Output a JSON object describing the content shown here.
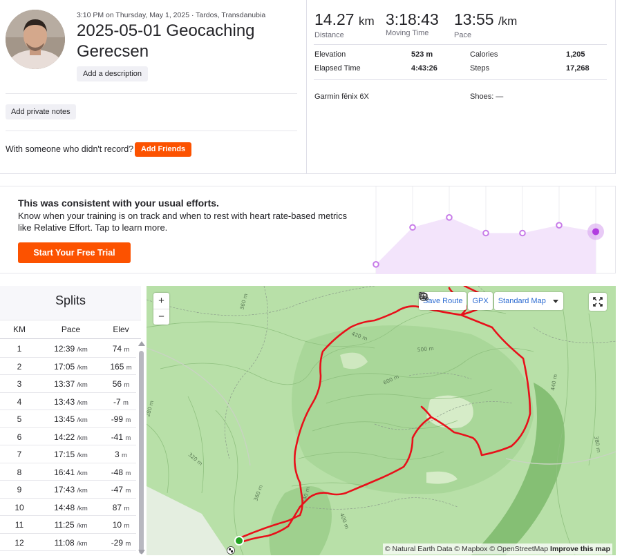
{
  "activity": {
    "meta": "3:10 PM on Thursday, May 1, 2025 · Tardos, Transdanubia",
    "title": "2025-05-01 Geocaching Gerecsen",
    "add_description": "Add a description",
    "add_private_notes": "Add private notes",
    "with_someone": "With someone who didn't record?",
    "add_friends": "Add Friends"
  },
  "stats": {
    "distance": {
      "value": "14.27",
      "unit": "km",
      "label": "Distance"
    },
    "moving_time": {
      "value": "3:18:43",
      "label": "Moving Time"
    },
    "pace": {
      "value": "13:55",
      "unit": "/km",
      "label": "Pace"
    },
    "rows": [
      {
        "label": "Elevation",
        "value": "523 m"
      },
      {
        "label": "Calories",
        "value": "1,205"
      },
      {
        "label": "Elapsed Time",
        "value": "4:43:26"
      },
      {
        "label": "Steps",
        "value": "17,268"
      }
    ],
    "device": "Garmin fēnix 6X",
    "shoes": "Shoes: —"
  },
  "effort": {
    "title": "This was consistent with your usual efforts.",
    "body": "Know when your training is on track and when to rest with heart rate-based metrics like Relative Effort. Tap to learn more.",
    "cta": "Start Your Free Trial",
    "trend_levels": [
      0.06,
      0.58,
      0.72,
      0.5,
      0.5,
      0.61,
      0.52
    ]
  },
  "splits": {
    "title": "Splits",
    "headers": {
      "km": "KM",
      "pace": "Pace",
      "elev": "Elev"
    },
    "pace_unit": "/km",
    "elev_unit": "m",
    "rows": [
      {
        "km": "1",
        "pace": "12:39",
        "elev": "74"
      },
      {
        "km": "2",
        "pace": "17:05",
        "elev": "165"
      },
      {
        "km": "3",
        "pace": "13:37",
        "elev": "56"
      },
      {
        "km": "4",
        "pace": "13:43",
        "elev": "-7"
      },
      {
        "km": "5",
        "pace": "13:45",
        "elev": "-99"
      },
      {
        "km": "6",
        "pace": "14:22",
        "elev": "-41"
      },
      {
        "km": "7",
        "pace": "17:15",
        "elev": "3"
      },
      {
        "km": "8",
        "pace": "16:41",
        "elev": "-48"
      },
      {
        "km": "9",
        "pace": "17:43",
        "elev": "-47"
      },
      {
        "km": "10",
        "pace": "14:48",
        "elev": "87"
      },
      {
        "km": "11",
        "pace": "11:25",
        "elev": "10"
      },
      {
        "km": "12",
        "pace": "11:08",
        "elev": "-29"
      }
    ]
  },
  "map": {
    "save_route": "Save Route",
    "gpx": "GPX",
    "map_type": "Standard Map",
    "zoom_in": "+",
    "zoom_out": "−",
    "attribution": "© Natural Earth Data © Mapbox © OpenStreetMap",
    "improve": "Improve this map",
    "contour_labels": [
      "360 m",
      "420 m",
      "500 m",
      "600 m",
      "440 m",
      "280 m",
      "320 m",
      "360 m",
      "440 m",
      "380 m",
      "400 m"
    ],
    "colors": {
      "route": "#e8101a",
      "terrain": "#b8e0a8",
      "start": "#22a322"
    }
  }
}
